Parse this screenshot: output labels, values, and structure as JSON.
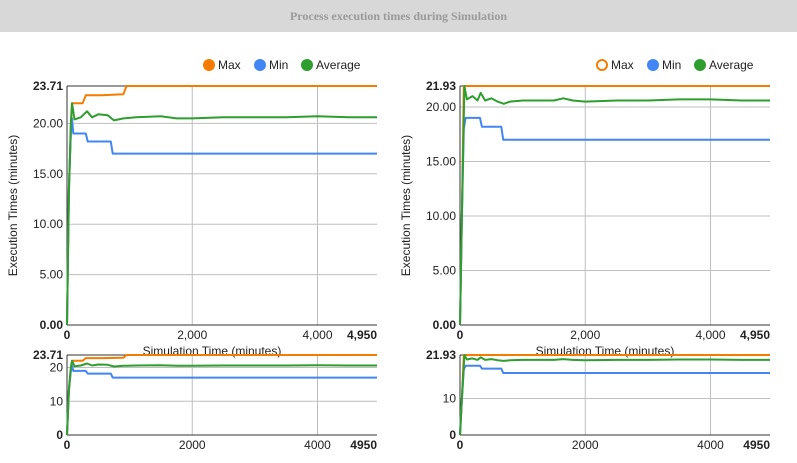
{
  "title": "Process execution times during Simulation",
  "legend": {
    "max": "Max",
    "min": "Min",
    "average": "Average"
  },
  "colors": {
    "max": "#f57c00",
    "min": "#4285f4",
    "average": "#2e9e2e",
    "grid": "#bfbfbf"
  },
  "chart_data": [
    {
      "type": "line",
      "xlabel": "Simulation Time (minutes)",
      "ylabel": "Execution Times (minutes)",
      "xlim": [
        0,
        4950
      ],
      "ylim": [
        0,
        23.71
      ],
      "x_ticks": [
        {
          "v": 0,
          "t": "0"
        },
        {
          "v": 2000,
          "t": "2,000"
        },
        {
          "v": 4000,
          "t": "4,000"
        },
        {
          "v": 4950,
          "t": "4,950"
        }
      ],
      "y_ticks": [
        {
          "v": 0,
          "t": "0.00"
        },
        {
          "v": 5,
          "t": "5.00"
        },
        {
          "v": 10,
          "t": "10.00"
        },
        {
          "v": 15,
          "t": "15.00"
        },
        {
          "v": 20,
          "t": "20.00"
        },
        {
          "v": 23.71,
          "t": "23.71"
        }
      ],
      "series": [
        {
          "name": "Max",
          "points": [
            [
              0,
              0
            ],
            [
              30,
              13.5
            ],
            [
              60,
              19
            ],
            [
              80,
              22
            ],
            [
              250,
              22
            ],
            [
              300,
              22.8
            ],
            [
              550,
              22.8
            ],
            [
              900,
              22.9
            ],
            [
              950,
              23.71
            ],
            [
              4950,
              23.71
            ]
          ]
        },
        {
          "name": "Min",
          "points": [
            [
              0,
              0
            ],
            [
              30,
              13.5
            ],
            [
              60,
              19
            ],
            [
              80,
              20.5
            ],
            [
              100,
              19
            ],
            [
              300,
              19
            ],
            [
              330,
              18.2
            ],
            [
              700,
              18.2
            ],
            [
              730,
              17
            ],
            [
              4950,
              17
            ]
          ]
        },
        {
          "name": "Average",
          "points": [
            [
              0,
              0
            ],
            [
              30,
              13
            ],
            [
              60,
              20
            ],
            [
              80,
              22
            ],
            [
              120,
              20.4
            ],
            [
              220,
              20.6
            ],
            [
              320,
              21.2
            ],
            [
              400,
              20.6
            ],
            [
              500,
              20.9
            ],
            [
              650,
              20.8
            ],
            [
              750,
              20.3
            ],
            [
              900,
              20.5
            ],
            [
              1100,
              20.6
            ],
            [
              1500,
              20.7
            ],
            [
              1750,
              20.5
            ],
            [
              2000,
              20.5
            ],
            [
              2500,
              20.6
            ],
            [
              3000,
              20.6
            ],
            [
              3500,
              20.6
            ],
            [
              4000,
              20.7
            ],
            [
              4500,
              20.6
            ],
            [
              4950,
              20.6
            ]
          ]
        }
      ]
    },
    {
      "type": "line",
      "xlabel": "Simulation Time (minutes)",
      "ylabel": "Execution Times (minutes)",
      "xlim": [
        0,
        4950
      ],
      "ylim": [
        0,
        21.93
      ],
      "x_ticks": [
        {
          "v": 0,
          "t": "0"
        },
        {
          "v": 2000,
          "t": "2,000"
        },
        {
          "v": 4000,
          "t": "4,000"
        },
        {
          "v": 4950,
          "t": "4,950"
        }
      ],
      "y_ticks": [
        {
          "v": 0,
          "t": "0.00"
        },
        {
          "v": 5,
          "t": "5.00"
        },
        {
          "v": 10,
          "t": "10.00"
        },
        {
          "v": 15,
          "t": "15.00"
        },
        {
          "v": 20,
          "t": "20.00"
        },
        {
          "v": 21.93,
          "t": "21.93"
        }
      ],
      "series": [
        {
          "name": "Max",
          "points": [
            [
              0,
              0
            ],
            [
              30,
              10
            ],
            [
              60,
              21.93
            ],
            [
              4950,
              21.93
            ]
          ]
        },
        {
          "name": "Min",
          "points": [
            [
              0,
              0
            ],
            [
              30,
              10
            ],
            [
              60,
              18
            ],
            [
              90,
              19
            ],
            [
              320,
              19
            ],
            [
              350,
              18.2
            ],
            [
              660,
              18.2
            ],
            [
              690,
              17
            ],
            [
              4950,
              17
            ]
          ]
        },
        {
          "name": "Average",
          "points": [
            [
              0,
              0
            ],
            [
              30,
              10
            ],
            [
              70,
              21.93
            ],
            [
              110,
              20.7
            ],
            [
              200,
              21
            ],
            [
              280,
              20.6
            ],
            [
              330,
              21.3
            ],
            [
              400,
              20.6
            ],
            [
              500,
              20.8
            ],
            [
              600,
              20.5
            ],
            [
              700,
              20.3
            ],
            [
              800,
              20.5
            ],
            [
              1000,
              20.6
            ],
            [
              1500,
              20.6
            ],
            [
              1650,
              20.8
            ],
            [
              1800,
              20.6
            ],
            [
              2000,
              20.5
            ],
            [
              2500,
              20.6
            ],
            [
              3000,
              20.6
            ],
            [
              3500,
              20.7
            ],
            [
              4000,
              20.7
            ],
            [
              4500,
              20.6
            ],
            [
              4950,
              20.6
            ]
          ]
        }
      ]
    },
    {
      "type": "line",
      "xlim": [
        0,
        4950
      ],
      "ylim": [
        0,
        23.71
      ],
      "x_ticks": [
        {
          "v": 0,
          "t": "0"
        },
        {
          "v": 2000,
          "t": "2000"
        },
        {
          "v": 4000,
          "t": "4000"
        },
        {
          "v": 4950,
          "t": "4950"
        }
      ],
      "y_ticks": [
        {
          "v": 0,
          "t": "0"
        },
        {
          "v": 10,
          "t": "10"
        },
        {
          "v": 20,
          "t": "20"
        },
        {
          "v": 23.71,
          "t": "23.71"
        }
      ],
      "series_ref": 0
    },
    {
      "type": "line",
      "xlim": [
        0,
        4950
      ],
      "ylim": [
        0,
        21.93
      ],
      "x_ticks": [
        {
          "v": 0,
          "t": "0"
        },
        {
          "v": 2000,
          "t": "2000"
        },
        {
          "v": 4000,
          "t": "4000"
        },
        {
          "v": 4950,
          "t": "4950"
        }
      ],
      "y_ticks": [
        {
          "v": 0,
          "t": "0"
        },
        {
          "v": 10,
          "t": "10"
        },
        {
          "v": 21.93,
          "t": "21.93"
        }
      ],
      "series_ref": 1
    }
  ]
}
